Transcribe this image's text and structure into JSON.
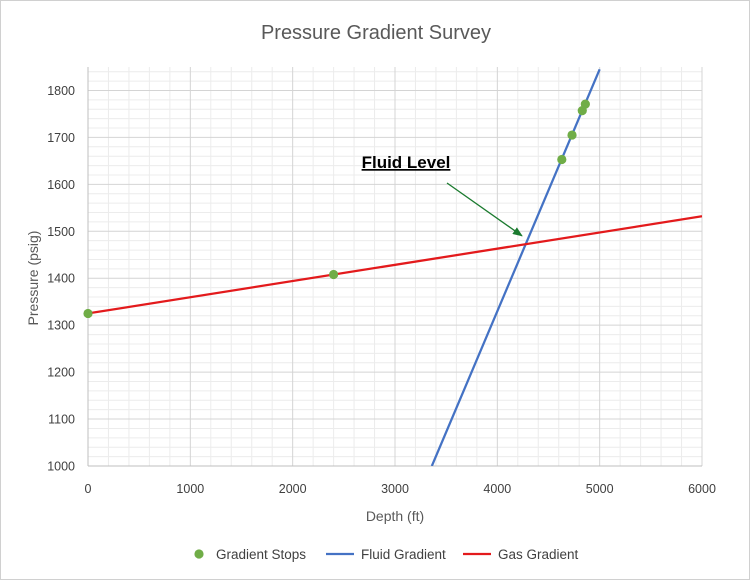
{
  "chart_data": {
    "type": "scatter",
    "title": "Pressure Gradient Survey",
    "xlabel": "Depth (ft)",
    "ylabel": "Pressure (psig)",
    "xlim": [
      0,
      6000
    ],
    "ylim": [
      1000,
      1850
    ],
    "x_ticks": [
      0,
      1000,
      2000,
      3000,
      4000,
      5000,
      6000
    ],
    "y_ticks": [
      1000,
      1100,
      1200,
      1300,
      1400,
      1500,
      1600,
      1700,
      1800
    ],
    "x_minor_step": 200,
    "y_minor_step": 20,
    "grid": true,
    "legend_position": "bottom",
    "series": [
      {
        "name": "Gradient Stops",
        "kind": "scatter",
        "color": "#70ad47",
        "points": [
          [
            0,
            1325
          ],
          [
            2400,
            1408
          ],
          [
            4630,
            1653
          ],
          [
            4730,
            1705
          ],
          [
            4830,
            1757
          ],
          [
            4860,
            1771
          ]
        ]
      },
      {
        "name": "Fluid Gradient",
        "kind": "line",
        "color": "#4472c4",
        "points": [
          [
            3360,
            1000
          ],
          [
            5000,
            1845
          ]
        ]
      },
      {
        "name": "Gas Gradient",
        "kind": "line",
        "color": "#e31a1c",
        "points": [
          [
            0,
            1325
          ],
          [
            6000,
            1532
          ]
        ]
      }
    ],
    "annotation": {
      "text": "Fluid Level",
      "target": [
        4260,
        1484
      ]
    }
  }
}
